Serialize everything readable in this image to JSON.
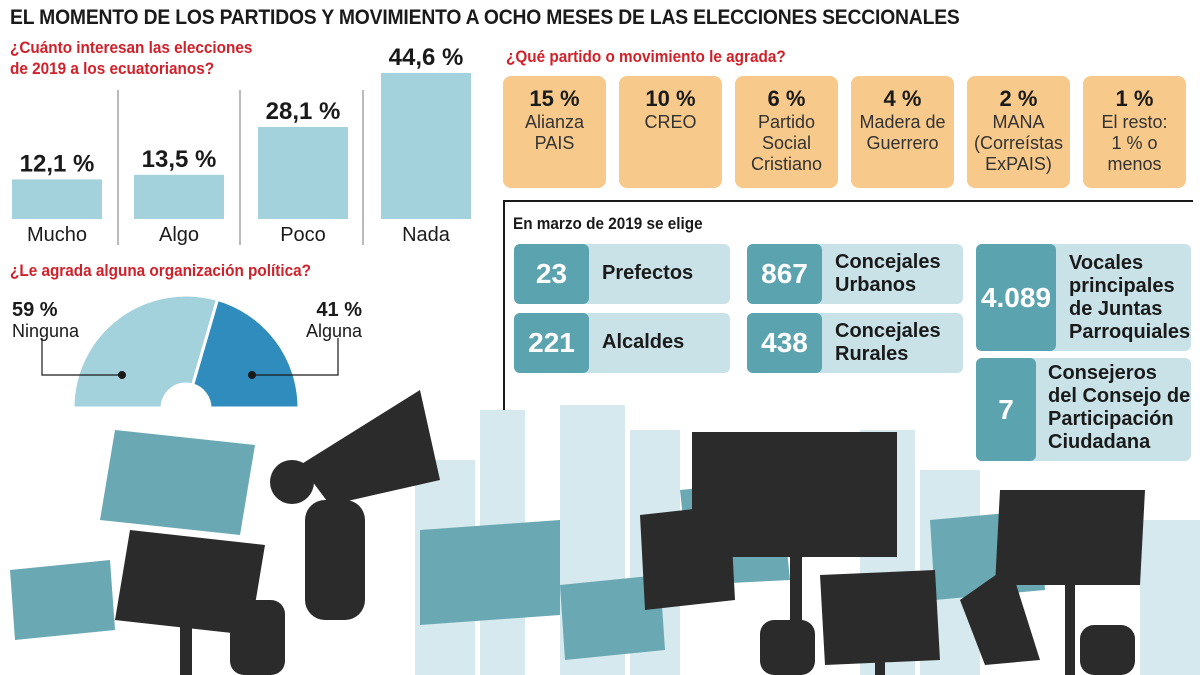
{
  "title": "EL MOMENTO DE LOS PARTIDOS Y MOVIMIENTO A OCHO MESES DE LAS ELECCIONES SECCIONALES",
  "interest": {
    "question_line1": "¿Cuánto interesan las elecciones",
    "question_line2": "de 2019 a los ecuatorianos?"
  },
  "approval": {
    "question": "¿Le agrada alguna organización política?"
  },
  "parties": {
    "question": "¿Qué partido o movimiento le agrada?",
    "items": [
      {
        "pct": "15 %",
        "name": [
          "Alianza",
          "PAIS"
        ]
      },
      {
        "pct": "10 %",
        "name": [
          "CREO"
        ]
      },
      {
        "pct": "6 %",
        "name": [
          "Partido",
          "Social",
          "Cristiano"
        ]
      },
      {
        "pct": "4 %",
        "name": [
          "Madera de",
          "Guerrero"
        ]
      },
      {
        "pct": "2 %",
        "name": [
          "MANA",
          "(Correístas",
          "ExPAIS)"
        ]
      },
      {
        "pct": "1 %",
        "name": [
          "El resto:",
          "1 % o",
          "menos"
        ]
      }
    ]
  },
  "elections": {
    "heading": "En marzo de 2019 se elige",
    "roles": [
      {
        "count": "23",
        "label": [
          "Prefectos"
        ]
      },
      {
        "count": "221",
        "label": [
          "Alcaldes"
        ]
      },
      {
        "count": "867",
        "label": [
          "Concejales",
          "Urbanos"
        ]
      },
      {
        "count": "438",
        "label": [
          "Concejales",
          "Rurales"
        ]
      },
      {
        "count": "4.089",
        "label": [
          "Vocales",
          "principales",
          "de Juntas",
          "Parroquiales"
        ]
      },
      {
        "count": "7",
        "label": [
          "Consejeros",
          "del Consejo de",
          "Participación",
          "Ciudadana"
        ]
      }
    ]
  },
  "colors": {
    "bar": "#a3d2dc",
    "party_card": "#f7c98a",
    "role_box": "#c8e2e8",
    "role_number": "#5aa3af",
    "pie_light": "#a3d2dc",
    "pie_dark": "#2f8cbc",
    "question": "#d0212a"
  },
  "chart_data": [
    {
      "type": "bar",
      "categories": [
        "Mucho",
        "Algo",
        "Poco",
        "Nada"
      ],
      "values": [
        12.1,
        13.5,
        28.1,
        44.6
      ],
      "value_labels": [
        "12,1 %",
        "13,5 %",
        "28,1 %",
        "44,6 %"
      ],
      "title": "¿Cuánto interesan las elecciones de 2019 a los ecuatorianos?",
      "ylim": [
        0,
        50
      ]
    },
    {
      "type": "pie",
      "variant": "half-donut",
      "categories": [
        "Ninguna",
        "Alguna"
      ],
      "values": [
        59,
        41
      ],
      "value_labels": [
        "59 %",
        "41 %"
      ],
      "title": "¿Le agrada alguna organización política?"
    },
    {
      "type": "table",
      "title": "¿Qué partido o movimiento le agrada?",
      "categories": [
        "Alianza PAIS",
        "CREO",
        "Partido Social Cristiano",
        "Madera de Guerrero",
        "MANA (Correístas ExPAIS)",
        "El resto: 1 % o menos"
      ],
      "values": [
        15,
        10,
        6,
        4,
        2,
        1
      ]
    }
  ]
}
